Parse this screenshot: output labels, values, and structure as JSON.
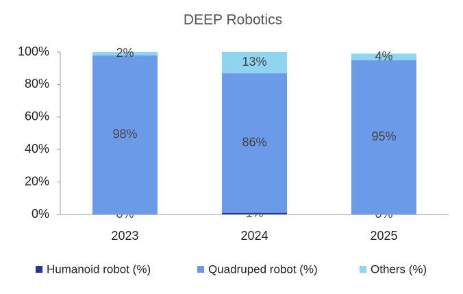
{
  "chart_data": {
    "type": "stacked_bar",
    "title": "DEEP Robotics",
    "categories": [
      "2023",
      "2024",
      "2025"
    ],
    "series": [
      {
        "name": "Humanoid robot (%)",
        "color": "#1f3a8f",
        "values": [
          0,
          1,
          0
        ],
        "value_labels": [
          "0%",
          "1%",
          "0%"
        ]
      },
      {
        "name": "Quadruped robot (%)",
        "color": "#6b9be8",
        "values": [
          98,
          86,
          95
        ],
        "value_labels": [
          "98%",
          "86%",
          "95%"
        ]
      },
      {
        "name": "Others (%)",
        "color": "#90d5ef",
        "values": [
          2,
          13,
          4
        ],
        "value_labels": [
          "2%",
          "13%",
          "4%"
        ]
      }
    ],
    "ylim": [
      0,
      100
    ],
    "yticks": [
      {
        "value": 0,
        "label": "0%"
      },
      {
        "value": 20,
        "label": "20%"
      },
      {
        "value": 40,
        "label": "40%"
      },
      {
        "value": 60,
        "label": "60%"
      },
      {
        "value": 80,
        "label": "80%"
      },
      {
        "value": 100,
        "label": "100%"
      }
    ],
    "legend": "bottom"
  }
}
